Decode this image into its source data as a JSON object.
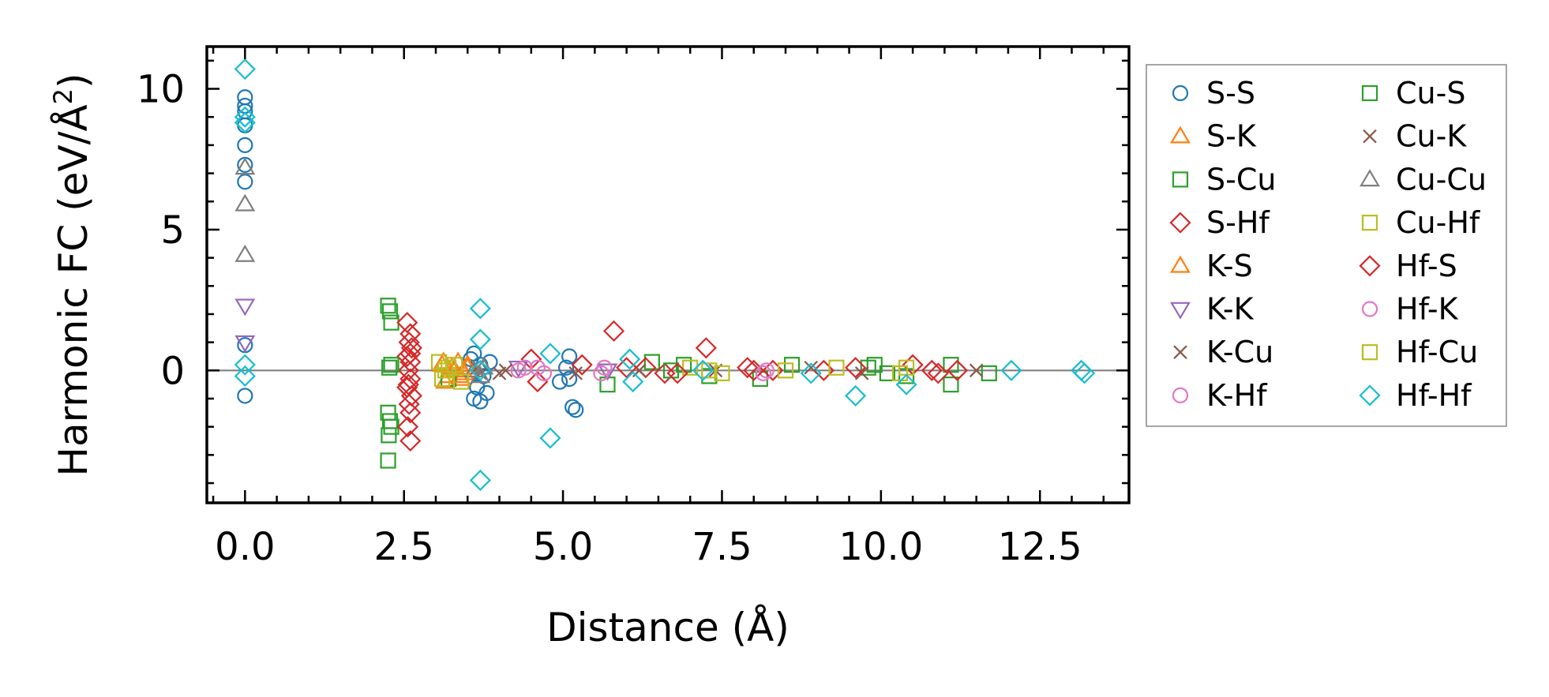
{
  "chart_data": {
    "type": "scatter",
    "xlabel": "Distance (Å)",
    "ylabel_main": "Harmonic FC (eV/Å",
    "ylabel_sup": "2",
    "ylabel_close": ")",
    "xlim": [
      -0.6,
      13.9
    ],
    "ylim": [
      -4.7,
      11.5
    ],
    "xticks": [
      0.0,
      2.5,
      5.0,
      7.5,
      10.0,
      12.5
    ],
    "xtick_labels": [
      "0.0",
      "2.5",
      "5.0",
      "7.5",
      "10.0",
      "12.5"
    ],
    "yticks": [
      0,
      5,
      10
    ],
    "ytick_labels": [
      "0",
      "5",
      "10"
    ],
    "zero_line": true,
    "legend_position": "outside-right",
    "series": [
      {
        "name": "S-S",
        "color": "#1f77b4",
        "marker": "circle",
        "points": [
          [
            0,
            9.7
          ],
          [
            0,
            9.4
          ],
          [
            0,
            9.2
          ],
          [
            0,
            8.7
          ],
          [
            0,
            8.0
          ],
          [
            0,
            7.3
          ],
          [
            0,
            6.7
          ],
          [
            0,
            0.9
          ],
          [
            0,
            -0.9
          ],
          [
            3.6,
            0.6
          ],
          [
            3.7,
            0.2
          ],
          [
            3.75,
            -0.2
          ],
          [
            3.65,
            -0.6
          ],
          [
            3.6,
            -1.0
          ],
          [
            3.7,
            -1.1
          ],
          [
            3.55,
            0.4
          ],
          [
            3.8,
            -0.8
          ],
          [
            3.85,
            0.3
          ],
          [
            5.1,
            0.5
          ],
          [
            5.1,
            -0.3
          ],
          [
            5.15,
            -1.3
          ],
          [
            5.2,
            -1.4
          ],
          [
            5.05,
            0.1
          ],
          [
            4.95,
            -0.4
          ]
        ]
      },
      {
        "name": "S-K",
        "color": "#ff7f0e",
        "marker": "triangle-up",
        "points": [
          [
            3.1,
            0.2
          ],
          [
            3.2,
            -0.2
          ],
          [
            3.3,
            0.0
          ],
          [
            3.4,
            -0.3
          ],
          [
            3.5,
            0.1
          ],
          [
            3.15,
            -0.4
          ],
          [
            3.35,
            0.3
          ],
          [
            3.45,
            -0.1
          ]
        ]
      },
      {
        "name": "S-Cu",
        "color": "#2ca02c",
        "marker": "square",
        "points": [
          [
            2.25,
            2.3
          ],
          [
            2.28,
            2.1
          ],
          [
            2.3,
            1.7
          ],
          [
            2.27,
            0.1
          ],
          [
            2.25,
            -1.5
          ],
          [
            2.28,
            -1.8
          ],
          [
            2.3,
            -2.0
          ],
          [
            2.26,
            -2.3
          ],
          [
            2.25,
            -3.2
          ],
          [
            3.2,
            -0.3
          ],
          [
            5.7,
            -0.5
          ],
          [
            6.4,
            0.3
          ],
          [
            6.9,
            0.2
          ],
          [
            7.3,
            -0.2
          ],
          [
            8.1,
            -0.3
          ],
          [
            8.6,
            0.2
          ],
          [
            9.8,
            0.1
          ],
          [
            10.1,
            -0.1
          ],
          [
            11.1,
            0.2
          ],
          [
            11.1,
            -0.5
          ],
          [
            11.7,
            -0.1
          ]
        ]
      },
      {
        "name": "S-Hf",
        "color": "#d62728",
        "marker": "diamond",
        "points": [
          [
            2.55,
            1.7
          ],
          [
            2.6,
            1.3
          ],
          [
            2.58,
            1.0
          ],
          [
            2.62,
            0.8
          ],
          [
            2.55,
            0.5
          ],
          [
            2.6,
            0.3
          ],
          [
            2.57,
            0.0
          ],
          [
            2.6,
            -0.3
          ],
          [
            2.55,
            -0.6
          ],
          [
            2.62,
            -0.9
          ],
          [
            2.58,
            -1.2
          ],
          [
            2.6,
            -1.5
          ],
          [
            2.56,
            -2.0
          ],
          [
            2.6,
            -2.5
          ],
          [
            4.5,
            0.4
          ],
          [
            4.6,
            -0.4
          ],
          [
            5.3,
            0.2
          ],
          [
            5.8,
            1.4
          ],
          [
            6.3,
            0.1
          ],
          [
            6.6,
            -0.1
          ],
          [
            7.25,
            0.8
          ],
          [
            7.9,
            0.1
          ],
          [
            8.3,
            0.0
          ],
          [
            9.1,
            0.0
          ],
          [
            10.5,
            0.2
          ],
          [
            10.9,
            -0.1
          ],
          [
            11.2,
            0.0
          ]
        ]
      },
      {
        "name": "K-S",
        "color": "#ff7f0e",
        "marker": "triangle-up",
        "points": [
          [
            3.12,
            0.3
          ],
          [
            3.25,
            0.1
          ],
          [
            3.38,
            -0.2
          ],
          [
            3.5,
            0.2
          ]
        ]
      },
      {
        "name": "K-K",
        "color": "#9467bd",
        "marker": "triangle-down",
        "points": [
          [
            0,
            2.3
          ],
          [
            0,
            1.0
          ],
          [
            4.3,
            0.1
          ],
          [
            5.7,
            0.0
          ]
        ]
      },
      {
        "name": "K-Cu",
        "color": "#8c564b",
        "marker": "x",
        "points": [
          [
            3.7,
            -0.1
          ],
          [
            4.1,
            0.0
          ],
          [
            5.2,
            -0.1
          ],
          [
            7.4,
            0.0
          ],
          [
            8.9,
            0.1
          ],
          [
            11.5,
            0.0
          ]
        ]
      },
      {
        "name": "K-Hf",
        "color": "#e377c2",
        "marker": "circle",
        "points": [
          [
            4.3,
            0.0
          ],
          [
            4.6,
            0.1
          ],
          [
            5.6,
            -0.1
          ],
          [
            8.2,
            0.0
          ]
        ]
      },
      {
        "name": "Cu-S",
        "color": "#2ca02c",
        "marker": "square",
        "points": [
          [
            2.3,
            0.2
          ],
          [
            6.7,
            0.0
          ],
          [
            9.9,
            0.2
          ],
          [
            10.4,
            -0.2
          ]
        ]
      },
      {
        "name": "Cu-K",
        "color": "#8c564b",
        "marker": "x",
        "points": [
          [
            3.65,
            0.1
          ],
          [
            4.0,
            -0.1
          ],
          [
            6.2,
            0.0
          ],
          [
            9.7,
            -0.1
          ]
        ]
      },
      {
        "name": "Cu-Cu",
        "color": "#7f7f7f",
        "marker": "triangle-up",
        "points": [
          [
            0,
            7.2
          ],
          [
            0,
            5.9
          ],
          [
            0,
            4.1
          ],
          [
            3.6,
            0.0
          ],
          [
            3.75,
            0.1
          ],
          [
            3.7,
            -0.2
          ]
        ]
      },
      {
        "name": "Cu-Hf",
        "color": "#bcbd22",
        "marker": "square",
        "points": [
          [
            3.05,
            0.3
          ],
          [
            3.1,
            -0.3
          ],
          [
            3.2,
            0.1
          ],
          [
            3.4,
            -0.4
          ],
          [
            7.0,
            0.1
          ],
          [
            7.5,
            -0.1
          ],
          [
            8.5,
            0.0
          ],
          [
            10.4,
            0.1
          ]
        ]
      },
      {
        "name": "Hf-S",
        "color": "#d62728",
        "marker": "diamond",
        "points": [
          [
            2.6,
            0.6
          ],
          [
            2.57,
            -0.5
          ],
          [
            6.0,
            0.1
          ],
          [
            6.8,
            -0.1
          ],
          [
            8.0,
            0.0
          ],
          [
            9.6,
            0.1
          ],
          [
            10.8,
            0.0
          ]
        ]
      },
      {
        "name": "Hf-K",
        "color": "#e377c2",
        "marker": "circle",
        "points": [
          [
            4.4,
            0.1
          ],
          [
            4.7,
            -0.1
          ],
          [
            5.65,
            0.1
          ],
          [
            8.15,
            -0.1
          ]
        ]
      },
      {
        "name": "Hf-Cu",
        "color": "#bcbd22",
        "marker": "square",
        "points": [
          [
            3.15,
            0.0
          ],
          [
            3.3,
            0.2
          ],
          [
            7.3,
            0.0
          ],
          [
            9.3,
            0.1
          ],
          [
            10.3,
            -0.1
          ]
        ]
      },
      {
        "name": "Hf-Hf",
        "color": "#17becf",
        "marker": "diamond",
        "points": [
          [
            0,
            10.7
          ],
          [
            0,
            9.0
          ],
          [
            0,
            8.8
          ],
          [
            0,
            0.2
          ],
          [
            0,
            -0.2
          ],
          [
            3.7,
            2.2
          ],
          [
            3.7,
            1.1
          ],
          [
            3.7,
            0.0
          ],
          [
            3.7,
            -3.9
          ],
          [
            4.8,
            0.6
          ],
          [
            4.8,
            -2.4
          ],
          [
            6.05,
            0.4
          ],
          [
            6.1,
            -0.4
          ],
          [
            7.2,
            0.0
          ],
          [
            8.9,
            -0.1
          ],
          [
            9.6,
            -0.9
          ],
          [
            10.4,
            -0.5
          ],
          [
            12.05,
            0.0
          ],
          [
            13.15,
            0.0
          ],
          [
            13.2,
            -0.1
          ]
        ]
      }
    ]
  }
}
